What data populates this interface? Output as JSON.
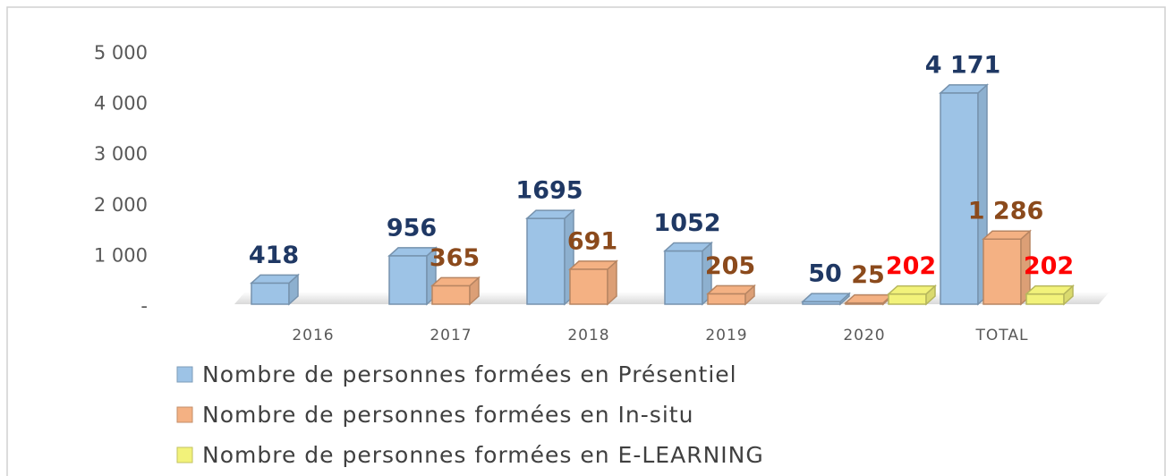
{
  "chart_data": {
    "type": "bar3d",
    "categories": [
      "2016",
      "2017",
      "2018",
      "2019",
      "2020",
      "TOTAL"
    ],
    "series": [
      {
        "name": "Nombre de personnes formées en Présentiel",
        "color": "#9dc3e6",
        "label_color": "#1f3864",
        "values": [
          418,
          956,
          1695,
          1052,
          50,
          4171
        ],
        "value_labels": [
          "418",
          "956",
          "1695",
          "1052",
          "50",
          "4 171"
        ]
      },
      {
        "name": "Nombre de personnes formées en In-situ",
        "color": "#f4b183",
        "label_color": "#8b4a1c",
        "values": [
          null,
          365,
          691,
          205,
          25,
          1286
        ],
        "value_labels": [
          null,
          "365",
          "691",
          "205",
          "25",
          "1 286"
        ]
      },
      {
        "name": "Nombre de personnes formées en E-LEARNING",
        "color": "#f2f27a",
        "label_color": "#ff0000",
        "values": [
          null,
          null,
          null,
          null,
          202,
          202
        ],
        "value_labels": [
          null,
          null,
          null,
          null,
          "202",
          "202"
        ]
      }
    ],
    "ylim": [
      0,
      5000
    ],
    "yticks": [
      {
        "value": 0,
        "label": "-"
      },
      {
        "value": 1000,
        "label": "1 000"
      },
      {
        "value": 2000,
        "label": "2 000"
      },
      {
        "value": 3000,
        "label": "3 000"
      },
      {
        "value": 4000,
        "label": "4 000"
      },
      {
        "value": 5000,
        "label": "5 000"
      }
    ],
    "grid": false,
    "legend": "bottom"
  }
}
